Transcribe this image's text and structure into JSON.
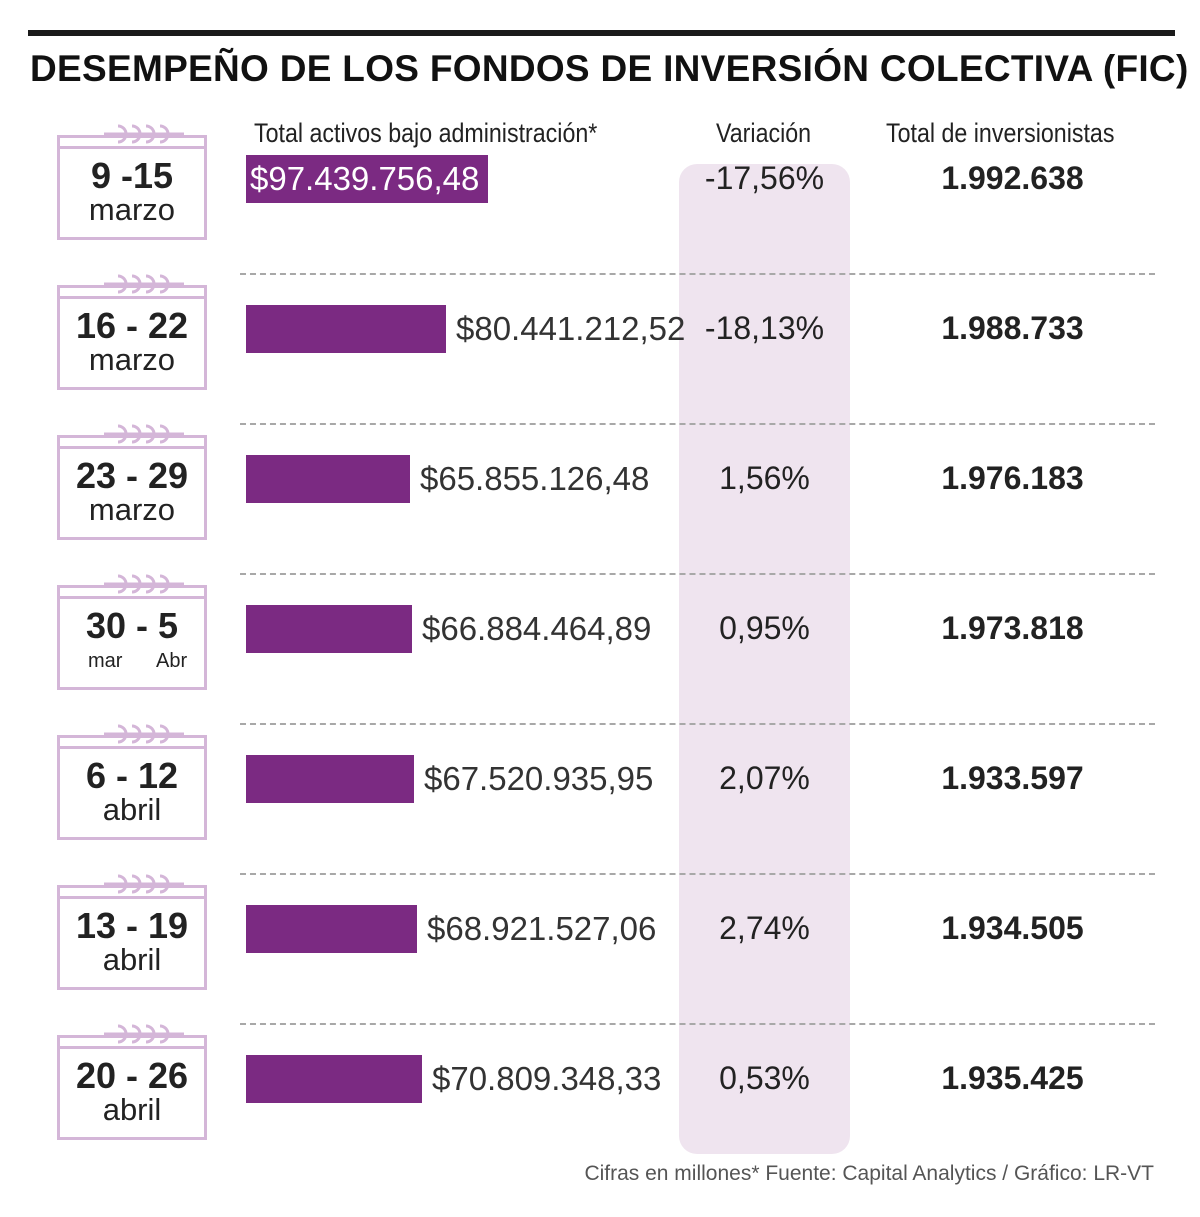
{
  "title": "DESEMPEÑO DE LOS FONDOS DE INVERSIÓN COLECTIVA (FIC)",
  "headers": {
    "assets": "Total activos bajo administración*",
    "variation": "Variación",
    "investors": "Total de inversionistas"
  },
  "colors": {
    "bar": "#7b2a82",
    "panel": "#efe4ef",
    "calendar": "#d4b6d8"
  },
  "rows": [
    {
      "days": "9 -15",
      "month": "marzo",
      "assets": "$97.439.756,48",
      "variation": "-17,56%",
      "investors": "1.992.638"
    },
    {
      "days": "16 - 22",
      "month": "marzo",
      "assets": "$80.441.212,52",
      "variation": "-18,13%",
      "investors": "1.988.733"
    },
    {
      "days": "23 - 29",
      "month": "marzo",
      "assets": "$65.855.126,48",
      "variation": "1,56%",
      "investors": "1.976.183"
    },
    {
      "days": "30 - 5",
      "month_left": "mar",
      "month_right": "Abr",
      "assets": "$66.884.464,89",
      "variation": "0,95%",
      "investors": "1.973.818"
    },
    {
      "days": "6 - 12",
      "month": "abril",
      "assets": "$67.520.935,95",
      "variation": "2,07%",
      "investors": "1.933.597"
    },
    {
      "days": "13 - 19",
      "month": "abril",
      "assets": "$68.921.527,06",
      "variation": "2,74%",
      "investors": "1.934.505"
    },
    {
      "days": "20 - 26",
      "month": "abril",
      "assets": "$70.809.348,33",
      "variation": "0,53%",
      "investors": "1.935.425"
    }
  ],
  "chart_data": {
    "type": "bar",
    "title": "DESEMPEÑO DE LOS FONDOS DE INVERSIÓN COLECTIVA (FIC)",
    "xlabel": "",
    "ylabel": "Total activos bajo administración*",
    "categories": [
      "9 -15 marzo",
      "16 - 22 marzo",
      "23 - 29 marzo",
      "30 - 5 mar Abr",
      "6 - 12 abril",
      "13 - 19 abril",
      "20 - 26 abril"
    ],
    "values": [
      97439756.48,
      80441212.52,
      65855126.48,
      66884464.89,
      67520935.95,
      68921527.06,
      70809348.33
    ],
    "series": [
      {
        "name": "Variación",
        "values": [
          -17.56,
          -18.13,
          1.56,
          0.95,
          2.07,
          2.74,
          0.53
        ]
      },
      {
        "name": "Total de inversionistas",
        "values": [
          1992638,
          1988733,
          1976183,
          1973818,
          1933597,
          1934505,
          1935425
        ]
      }
    ]
  },
  "footer": "Cifras en millones* Fuente: Capital Analytics / Gráfico: LR-VT"
}
